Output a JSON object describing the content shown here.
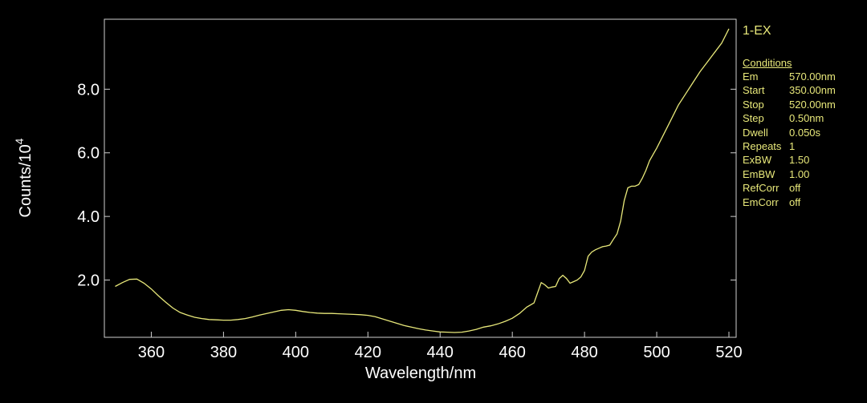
{
  "chart_data": {
    "type": "line",
    "title": "",
    "xlabel": "Wavelength/nm",
    "ylabel_base": "Counts/10",
    "ylabel_exp": "4",
    "xlim": [
      347,
      522
    ],
    "ylim": [
      0.2,
      10.2
    ],
    "x_ticks": [
      360,
      380,
      400,
      420,
      440,
      460,
      480,
      500,
      520
    ],
    "y_ticks": [
      2.0,
      4.0,
      6.0,
      8.0
    ],
    "y_tick_labels": [
      "2.0",
      "4.0",
      "6.0",
      "8.0"
    ],
    "grid": false,
    "line_color": "#e8e87a",
    "series": [
      {
        "points": [
          [
            350,
            1.8
          ],
          [
            352,
            1.92
          ],
          [
            354,
            2.02
          ],
          [
            356,
            2.03
          ],
          [
            358,
            1.9
          ],
          [
            360,
            1.72
          ],
          [
            362,
            1.5
          ],
          [
            364,
            1.3
          ],
          [
            366,
            1.12
          ],
          [
            368,
            0.98
          ],
          [
            370,
            0.9
          ],
          [
            372,
            0.83
          ],
          [
            374,
            0.79
          ],
          [
            376,
            0.76
          ],
          [
            378,
            0.75
          ],
          [
            380,
            0.74
          ],
          [
            382,
            0.74
          ],
          [
            384,
            0.76
          ],
          [
            386,
            0.79
          ],
          [
            388,
            0.84
          ],
          [
            390,
            0.9
          ],
          [
            392,
            0.95
          ],
          [
            394,
            1.0
          ],
          [
            396,
            1.05
          ],
          [
            398,
            1.07
          ],
          [
            400,
            1.05
          ],
          [
            402,
            1.01
          ],
          [
            404,
            0.98
          ],
          [
            406,
            0.96
          ],
          [
            408,
            0.95
          ],
          [
            410,
            0.95
          ],
          [
            412,
            0.94
          ],
          [
            414,
            0.93
          ],
          [
            416,
            0.92
          ],
          [
            418,
            0.91
          ],
          [
            420,
            0.89
          ],
          [
            422,
            0.85
          ],
          [
            424,
            0.78
          ],
          [
            426,
            0.71
          ],
          [
            428,
            0.64
          ],
          [
            430,
            0.57
          ],
          [
            432,
            0.52
          ],
          [
            434,
            0.47
          ],
          [
            436,
            0.43
          ],
          [
            438,
            0.4
          ],
          [
            440,
            0.37
          ],
          [
            442,
            0.36
          ],
          [
            444,
            0.35
          ],
          [
            446,
            0.36
          ],
          [
            448,
            0.4
          ],
          [
            450,
            0.45
          ],
          [
            452,
            0.52
          ],
          [
            454,
            0.56
          ],
          [
            456,
            0.62
          ],
          [
            458,
            0.7
          ],
          [
            460,
            0.8
          ],
          [
            462,
            0.95
          ],
          [
            464,
            1.15
          ],
          [
            466,
            1.28
          ],
          [
            467,
            1.6
          ],
          [
            468,
            1.92
          ],
          [
            469,
            1.85
          ],
          [
            470,
            1.75
          ],
          [
            471,
            1.78
          ],
          [
            472,
            1.8
          ],
          [
            473,
            2.05
          ],
          [
            474,
            2.15
          ],
          [
            475,
            2.05
          ],
          [
            476,
            1.9
          ],
          [
            477,
            1.95
          ],
          [
            478,
            2.0
          ],
          [
            479,
            2.1
          ],
          [
            480,
            2.3
          ],
          [
            481,
            2.75
          ],
          [
            482,
            2.88
          ],
          [
            483,
            2.95
          ],
          [
            484,
            3.0
          ],
          [
            485,
            3.05
          ],
          [
            486,
            3.07
          ],
          [
            487,
            3.1
          ],
          [
            488,
            3.28
          ],
          [
            489,
            3.45
          ],
          [
            490,
            3.85
          ],
          [
            491,
            4.5
          ],
          [
            492,
            4.9
          ],
          [
            493,
            4.95
          ],
          [
            494,
            4.95
          ],
          [
            495,
            5.0
          ],
          [
            496,
            5.2
          ],
          [
            497,
            5.45
          ],
          [
            498,
            5.75
          ],
          [
            499,
            5.95
          ],
          [
            500,
            6.15
          ],
          [
            502,
            6.6
          ],
          [
            504,
            7.05
          ],
          [
            506,
            7.5
          ],
          [
            508,
            7.85
          ],
          [
            510,
            8.2
          ],
          [
            512,
            8.55
          ],
          [
            514,
            8.85
          ],
          [
            516,
            9.15
          ],
          [
            518,
            9.45
          ],
          [
            520,
            9.9
          ]
        ]
      }
    ]
  },
  "panel": {
    "scan_name": "1-EX",
    "conditions_header": "Conditions",
    "rows": [
      {
        "key": "Em",
        "value": "570.00nm"
      },
      {
        "key": "Start",
        "value": "350.00nm"
      },
      {
        "key": "Stop",
        "value": "520.00nm"
      },
      {
        "key": "Step",
        "value": "0.50nm"
      },
      {
        "key": "Dwell",
        "value": "0.050s"
      },
      {
        "key": "Repeats",
        "value": "1"
      },
      {
        "key": "ExBW",
        "value": "1.50"
      },
      {
        "key": "EmBW",
        "value": "1.00"
      },
      {
        "key": "RefCorr",
        "value": "off"
      },
      {
        "key": "EmCorr",
        "value": "off"
      }
    ]
  }
}
